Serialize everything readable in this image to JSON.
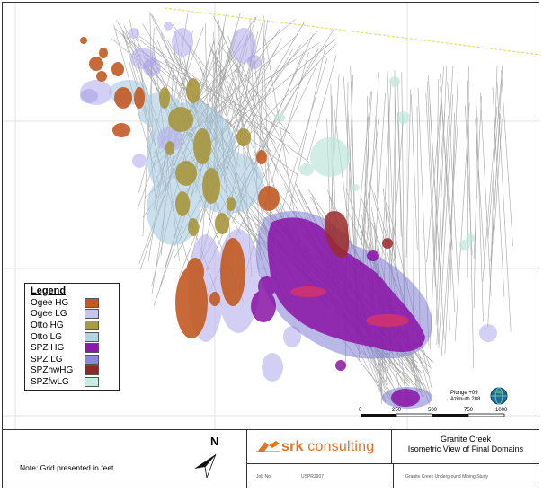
{
  "legend": {
    "title": "Legend",
    "items": [
      {
        "label": "Ogee HG",
        "color": "#c45a1e"
      },
      {
        "label": "Ogee LG",
        "color": "#c9c3f2"
      },
      {
        "label": "Otto HG",
        "color": "#a79b4a"
      },
      {
        "label": "Otto LG",
        "color": "#b5d3e3"
      },
      {
        "label": "SPZ HG",
        "color": "#8c1aa8"
      },
      {
        "label": "SPZ LG",
        "color": "#8a8ad6"
      },
      {
        "label": "SPZhwHG",
        "color": "#8c2a2a"
      },
      {
        "label": "SPZfwLG",
        "color": "#c8ece2"
      }
    ]
  },
  "orientation": {
    "plunge": "Plunge +09",
    "azimuth": "Azimuth 288",
    "north_label": "N"
  },
  "scale": {
    "ticks": [
      "0",
      "250",
      "500",
      "750",
      "1000"
    ]
  },
  "note": "Note: Grid presented in feet",
  "company": {
    "logo_text_bold": "srk",
    "logo_text_rest": " consulting"
  },
  "project": {
    "title_line1": "Granite Creek",
    "title_line2": "Isometric View of Final Domains",
    "job_label": "Job No:",
    "job_number": "USPR2907",
    "study_name": "Granite Creek Underground Mining Study"
  },
  "colors": {
    "ogee_hg": "#c45a1e",
    "ogee_lg": "#c9c3f2",
    "otto_hg": "#a79b4a",
    "otto_lg": "#b5d3e3",
    "spz_hg": "#8c1aa8",
    "spz_lg": "#8a8ad6",
    "spzhw_hg": "#8c2a2a",
    "spzfw_lg": "#c8ece2",
    "logo_orange": "#e8731c"
  }
}
